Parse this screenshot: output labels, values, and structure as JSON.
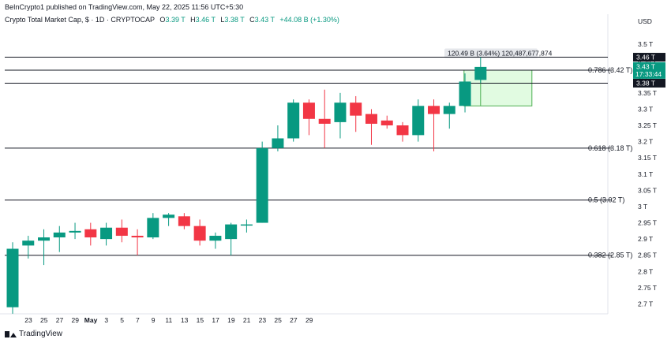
{
  "header": {
    "published": "BeInCrypto1 published on TradingView.com, May 22, 2025 11:56 UTC+5:30",
    "symbol": "Crypto Total Market Cap, $ · 1D · CRYPTOCAP",
    "o_label": "O",
    "o_value": "3.39 T",
    "h_label": "H",
    "h_value": "3.46 T",
    "l_label": "L",
    "l_value": "3.38 T",
    "c_label": "C",
    "c_value": "3.43 T",
    "change": "+44.08 B (+1.30%)"
  },
  "footer": {
    "brand": "TradingView"
  },
  "colors": {
    "up": "#089981",
    "down": "#f23645",
    "zone": "#c8f7c8"
  },
  "chart_data": {
    "type": "candlestick",
    "currency_label": "USD",
    "ylim": [
      2.65,
      3.55
    ],
    "y_ticks": [
      2.7,
      2.75,
      2.8,
      2.85,
      2.9,
      2.95,
      3.0,
      3.05,
      3.1,
      3.15,
      3.2,
      3.25,
      3.3,
      3.35,
      3.4,
      3.45,
      3.5
    ],
    "y_tick_labels": [
      "2.7 T",
      "2.75 T",
      "2.8 T",
      "2.85 T",
      "2.9 T",
      "2.95 T",
      "3 T",
      "3.05 T",
      "3.1 T",
      "3.15 T",
      "3.2 T",
      "3.25 T",
      "3.3 T",
      "3.35 T",
      "3.4 T",
      "3.45 T",
      "3.5 T"
    ],
    "x_ticks": [
      "23",
      "25",
      "27",
      "29",
      "May",
      "3",
      "5",
      "7",
      "9",
      "11",
      "13",
      "15",
      "17",
      "19",
      "21",
      "23",
      "25",
      "27",
      "29"
    ],
    "candles": [
      {
        "o": 2.69,
        "h": 2.89,
        "l": 2.67,
        "c": 2.87
      },
      {
        "o": 2.88,
        "h": 2.91,
        "l": 2.84,
        "c": 2.895
      },
      {
        "o": 2.895,
        "h": 2.93,
        "l": 2.82,
        "c": 2.905
      },
      {
        "o": 2.905,
        "h": 2.94,
        "l": 2.86,
        "c": 2.92
      },
      {
        "o": 2.92,
        "h": 2.95,
        "l": 2.9,
        "c": 2.925
      },
      {
        "o": 2.93,
        "h": 2.95,
        "l": 2.88,
        "c": 2.905
      },
      {
        "o": 2.9,
        "h": 2.95,
        "l": 2.88,
        "c": 2.935
      },
      {
        "o": 2.935,
        "h": 2.96,
        "l": 2.89,
        "c": 2.91
      },
      {
        "o": 2.91,
        "h": 2.93,
        "l": 2.85,
        "c": 2.905
      },
      {
        "o": 2.905,
        "h": 2.98,
        "l": 2.9,
        "c": 2.965
      },
      {
        "o": 2.965,
        "h": 2.98,
        "l": 2.94,
        "c": 2.975
      },
      {
        "o": 2.97,
        "h": 2.98,
        "l": 2.93,
        "c": 2.94
      },
      {
        "o": 2.94,
        "h": 2.96,
        "l": 2.88,
        "c": 2.895
      },
      {
        "o": 2.895,
        "h": 2.92,
        "l": 2.87,
        "c": 2.91
      },
      {
        "o": 2.9,
        "h": 2.95,
        "l": 2.85,
        "c": 2.945
      },
      {
        "o": 2.945,
        "h": 2.96,
        "l": 2.92,
        "c": 2.945
      },
      {
        "o": 2.95,
        "h": 3.2,
        "l": 2.95,
        "c": 3.18
      },
      {
        "o": 3.18,
        "h": 3.25,
        "l": 3.17,
        "c": 3.21
      },
      {
        "o": 3.21,
        "h": 3.33,
        "l": 3.2,
        "c": 3.32
      },
      {
        "o": 3.32,
        "h": 3.33,
        "l": 3.22,
        "c": 3.27
      },
      {
        "o": 3.27,
        "h": 3.36,
        "l": 3.18,
        "c": 3.255
      },
      {
        "o": 3.26,
        "h": 3.35,
        "l": 3.21,
        "c": 3.32
      },
      {
        "o": 3.32,
        "h": 3.34,
        "l": 3.23,
        "c": 3.28
      },
      {
        "o": 3.285,
        "h": 3.3,
        "l": 3.19,
        "c": 3.255
      },
      {
        "o": 3.265,
        "h": 3.28,
        "l": 3.24,
        "c": 3.25
      },
      {
        "o": 3.25,
        "h": 3.26,
        "l": 3.2,
        "c": 3.22
      },
      {
        "o": 3.22,
        "h": 3.33,
        "l": 3.2,
        "c": 3.31
      },
      {
        "o": 3.31,
        "h": 3.33,
        "l": 3.17,
        "c": 3.285
      },
      {
        "o": 3.285,
        "h": 3.32,
        "l": 3.24,
        "c": 3.31
      },
      {
        "o": 3.31,
        "h": 3.41,
        "l": 3.29,
        "c": 3.385
      },
      {
        "o": 3.39,
        "h": 3.46,
        "l": 3.38,
        "c": 3.43
      }
    ],
    "fib_levels": [
      {
        "value": 3.46,
        "label": ""
      },
      {
        "value": 3.42,
        "label": "0.786 (3.42 T)"
      },
      {
        "value": 3.38,
        "label": ""
      },
      {
        "value": 3.18,
        "label": "0.618 (3.18 T)"
      },
      {
        "value": 3.02,
        "label": "0.5 (3.02 T)"
      },
      {
        "value": 2.85,
        "label": "0.382 (2.85 T)"
      }
    ],
    "measure_label": "120.49 B (3.64%) 120,487,677,874",
    "price_tags": [
      {
        "value": 3.46,
        "text": "3.46 T",
        "style": "dark"
      },
      {
        "value": 3.43,
        "text": "3.43 T",
        "sub": "17:33:44",
        "style": "green"
      },
      {
        "value": 3.38,
        "text": "3.38 T",
        "style": "dark"
      }
    ]
  }
}
